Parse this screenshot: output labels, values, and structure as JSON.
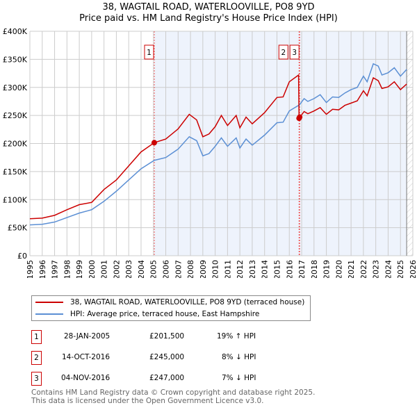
{
  "title": "38, WAGTAIL ROAD, WATERLOOVILLE, PO8 9YD",
  "subtitle": "Price paid vs. HM Land Registry's House Price Index (HPI)",
  "chart_data": {
    "type": "line",
    "xlim": [
      1995,
      2026
    ],
    "ylim": [
      0,
      400
    ],
    "yticks": [
      {
        "v": 0,
        "l": "£0"
      },
      {
        "v": 50,
        "l": "£50K"
      },
      {
        "v": 100,
        "l": "£100K"
      },
      {
        "v": 150,
        "l": "£150K"
      },
      {
        "v": 200,
        "l": "£200K"
      },
      {
        "v": 250,
        "l": "£250K"
      },
      {
        "v": 300,
        "l": "£300K"
      },
      {
        "v": 350,
        "l": "£350K"
      },
      {
        "v": 400,
        "l": "£400K"
      }
    ],
    "xticks": [
      "1995",
      "1996",
      "1997",
      "1998",
      "1999",
      "2000",
      "2001",
      "2002",
      "2003",
      "2004",
      "2005",
      "2006",
      "2007",
      "2008",
      "2009",
      "2010",
      "2011",
      "2012",
      "2013",
      "2014",
      "2015",
      "2016",
      "2017",
      "2018",
      "2019",
      "2020",
      "2021",
      "2022",
      "2023",
      "2024",
      "2025",
      "2026"
    ],
    "shaded_from": 2005.07,
    "hatched_from": 2025.5,
    "series": [
      {
        "name": "38, WAGTAIL ROAD, WATERLOOVILLE, PO8 9YD (terraced house)",
        "color": "#cc0000",
        "x": [
          1995,
          1996,
          1997,
          1998,
          1999,
          2000,
          2001,
          2002,
          2003,
          2004,
          2005.07,
          2006,
          2007,
          2007.9,
          2008.5,
          2009,
          2009.5,
          2010,
          2010.5,
          2011,
          2011.7,
          2012,
          2012.5,
          2013,
          2014,
          2015,
          2015.5,
          2016,
          2016.75,
          2016.79,
          2017.2,
          2017.5,
          2018,
          2018.5,
          2019,
          2019.5,
          2020,
          2020.5,
          2021,
          2021.5,
          2022,
          2022.3,
          2022.8,
          2023.2,
          2023.5,
          2024,
          2024.5,
          2025,
          2025.5
        ],
        "y": [
          66,
          67,
          72,
          82,
          91,
          95,
          118,
          135,
          160,
          185,
          201.5,
          208,
          226,
          252,
          242,
          212,
          217,
          230,
          250,
          232,
          250,
          228,
          247,
          235,
          255,
          282,
          283,
          310,
          322,
          245,
          257,
          253,
          258,
          264,
          252,
          261,
          260,
          268,
          272,
          276,
          294,
          285,
          317,
          312,
          298,
          301,
          310,
          296,
          306
        ]
      },
      {
        "name": "HPI: Average price, terraced house, East Hampshire",
        "color": "#5b8fd4",
        "x": [
          1995,
          1996,
          1997,
          1998,
          1999,
          2000,
          2001,
          2002,
          2003,
          2004,
          2005.07,
          2006,
          2007,
          2007.9,
          2008.5,
          2009,
          2009.5,
          2010,
          2010.5,
          2011,
          2011.7,
          2012,
          2012.5,
          2013,
          2014,
          2015,
          2015.5,
          2016,
          2016.75,
          2016.79,
          2017.2,
          2017.5,
          2018,
          2018.5,
          2019,
          2019.5,
          2020,
          2020.5,
          2021,
          2021.5,
          2022,
          2022.3,
          2022.8,
          2023.2,
          2023.5,
          2024,
          2024.5,
          2025,
          2025.5
        ],
        "y": [
          55,
          56,
          60,
          68,
          76,
          82,
          97,
          115,
          135,
          155,
          170,
          175,
          190,
          212,
          205,
          178,
          182,
          195,
          210,
          195,
          210,
          192,
          208,
          197,
          215,
          237,
          238,
          258,
          268,
          268,
          280,
          275,
          280,
          287,
          273,
          283,
          282,
          290,
          296,
          300,
          320,
          310,
          342,
          338,
          322,
          326,
          335,
          320,
          332
        ]
      }
    ],
    "sales": [
      {
        "n": "1",
        "x": 2005.07,
        "y": 201.5,
        "date": "28-JAN-2005",
        "price": "£201,500",
        "hpi": "19% ↑ HPI"
      },
      {
        "n": "2",
        "x": 2016.79,
        "y": 245,
        "date": "14-OCT-2016",
        "price": "£245,000",
        "hpi": "8% ↓ HPI"
      },
      {
        "n": "3",
        "x": 2016.84,
        "y": 247,
        "date": "04-NOV-2016",
        "price": "£247,000",
        "hpi": "7% ↓ HPI"
      }
    ]
  },
  "footer": {
    "line1": "Contains HM Land Registry data © Crown copyright and database right 2025.",
    "line2": "This data is licensed under the Open Government Licence v3.0."
  }
}
